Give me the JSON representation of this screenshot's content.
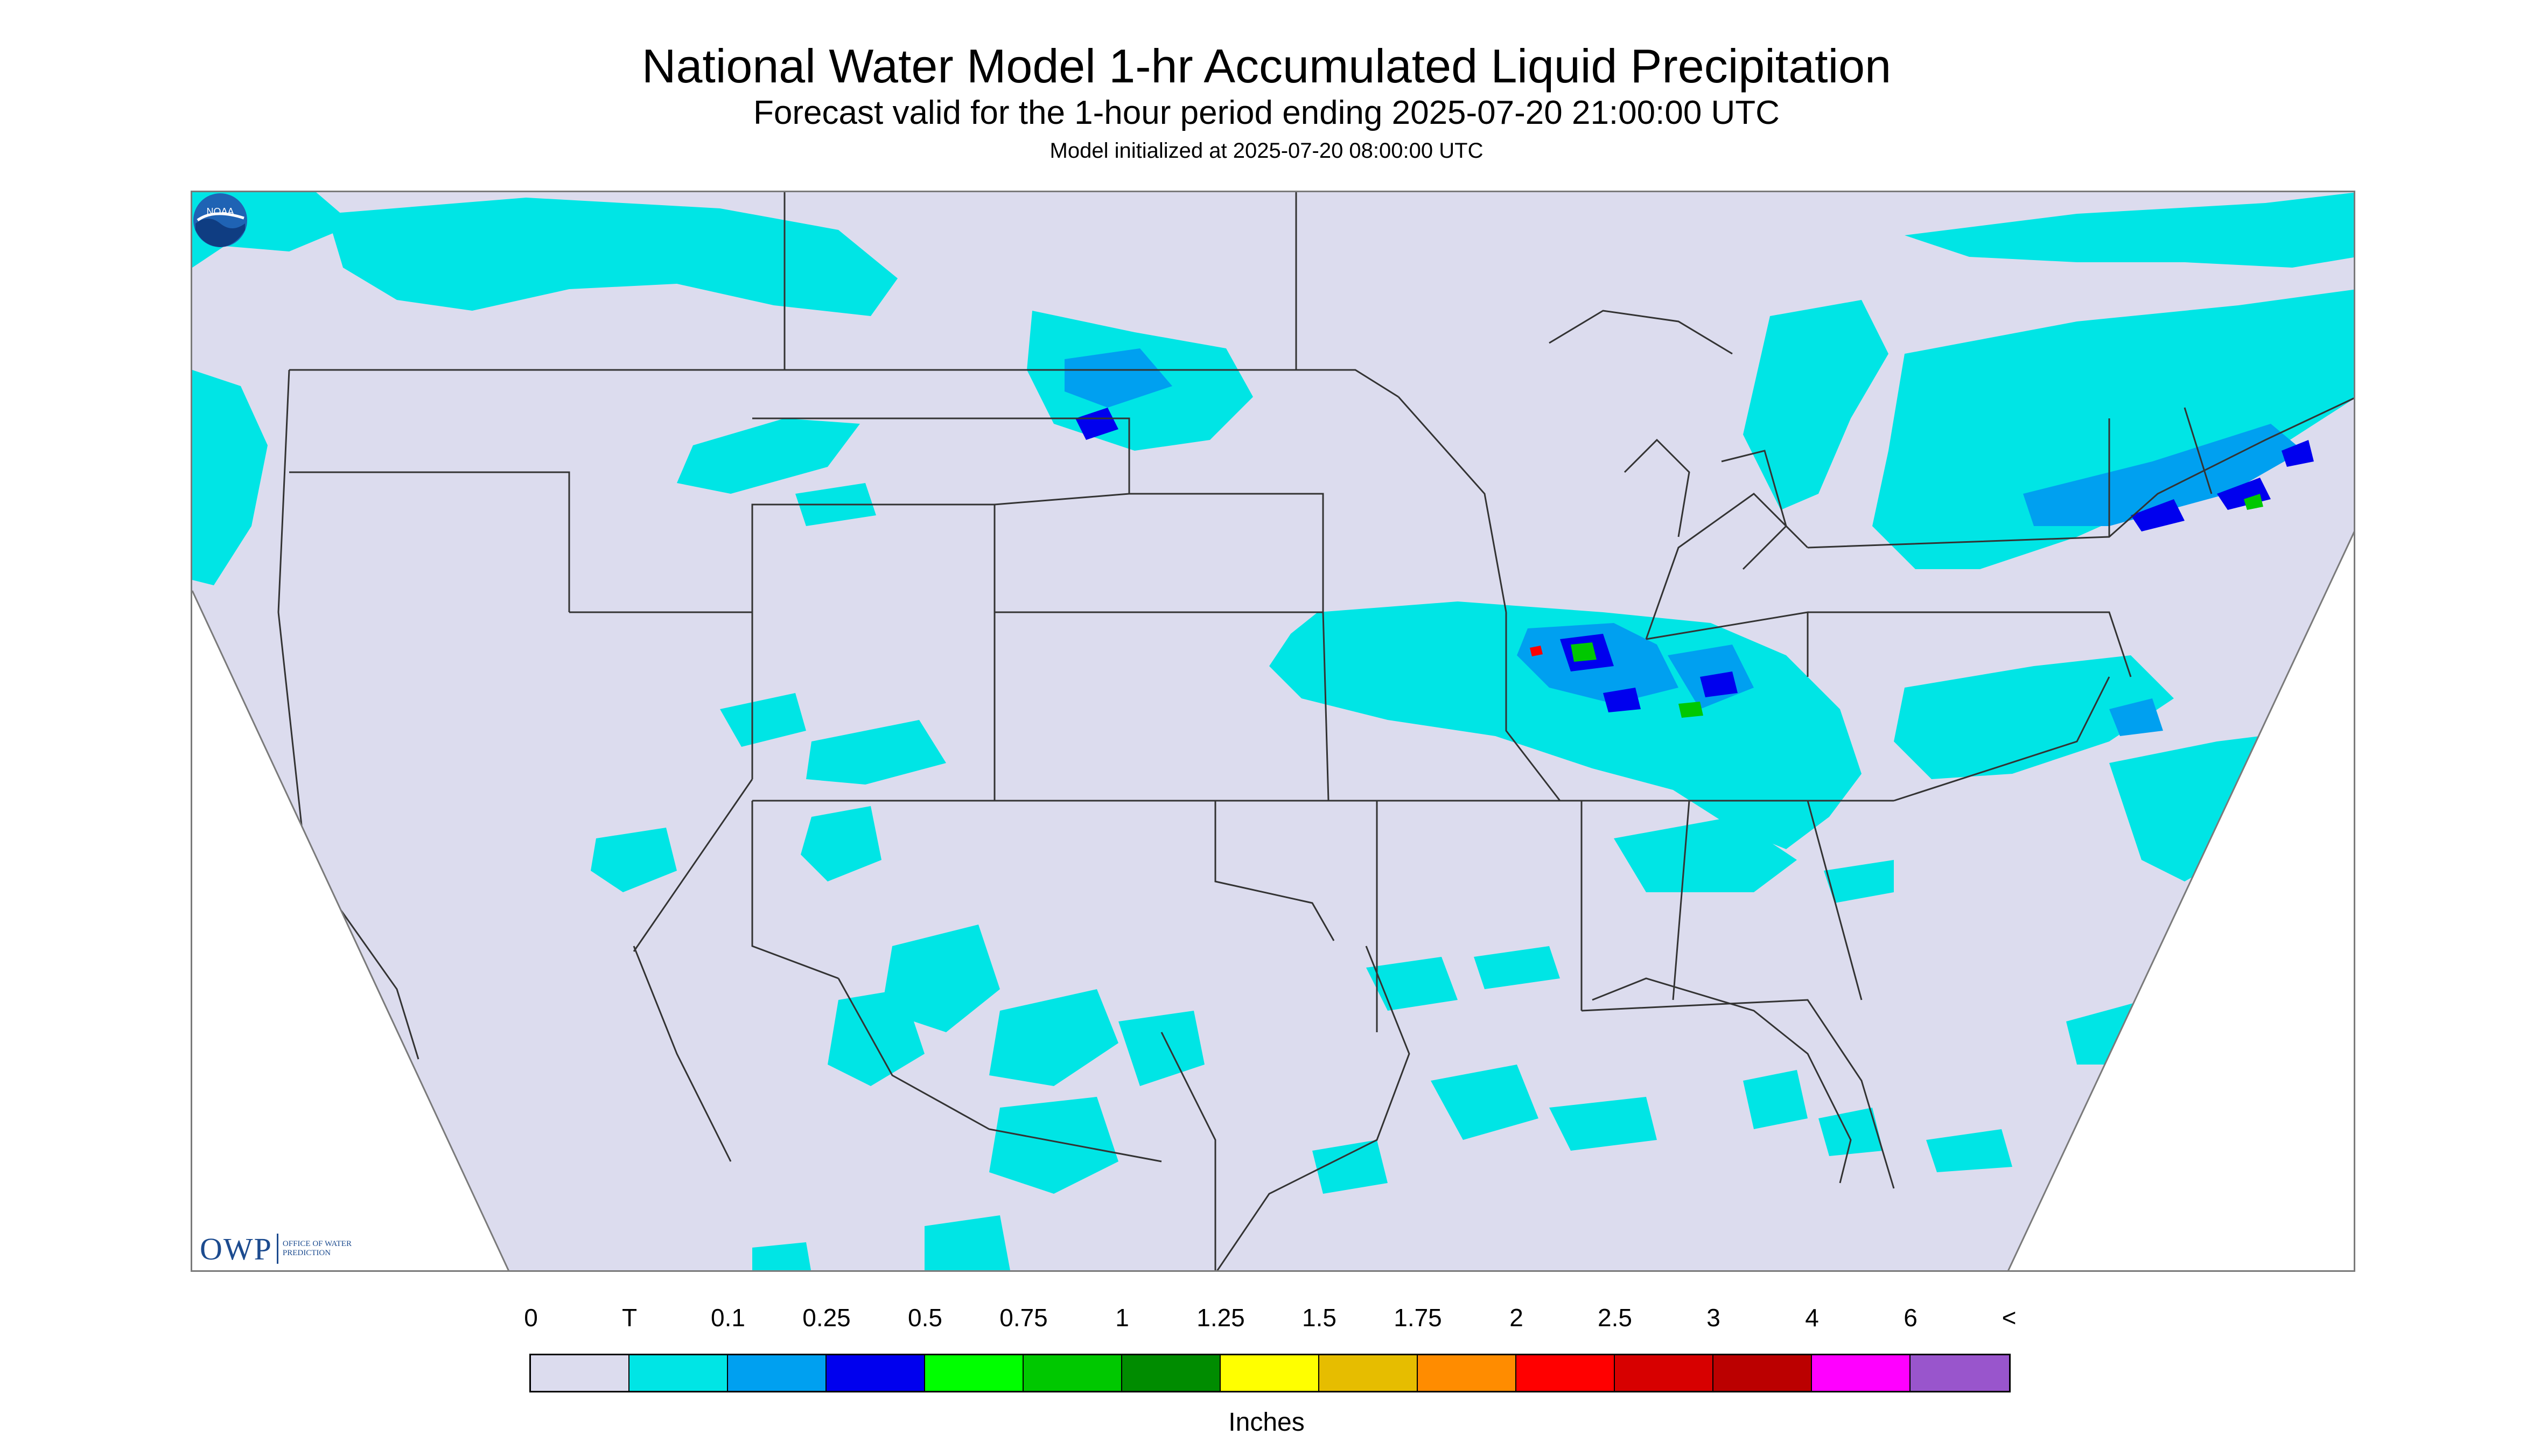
{
  "header": {
    "title": "National Water Model 1-hr Accumulated Liquid Precipitation",
    "subtitle": "Forecast valid for the 1-hour period ending 2025-07-20 21:00:00 UTC",
    "init_line": "Model initialized at 2025-07-20 08:00:00 UTC"
  },
  "map": {
    "background_color": "#dcdcee",
    "outside_domain_color": "#ffffff",
    "boundary_color": "#333333"
  },
  "logos": {
    "owp_mark": "OWP",
    "owp_name": "Office of Water Prediction",
    "noaa_mark": "NOAA"
  },
  "legend": {
    "ticks": [
      "0",
      "T",
      "0.1",
      "0.25",
      "0.5",
      "0.75",
      "1",
      "1.25",
      "1.5",
      "1.75",
      "2",
      "2.5",
      "3",
      "4",
      "6",
      "<"
    ],
    "colors": [
      "#dcdcee",
      "#00e5e5",
      "#00a0f0",
      "#0000ee",
      "#00ff00",
      "#00c800",
      "#008c00",
      "#ffff00",
      "#e6bd00",
      "#ff8c00",
      "#ff0000",
      "#d70000",
      "#bb0000",
      "#ff00ff",
      "#9955cc"
    ],
    "units_label": "Inches"
  }
}
